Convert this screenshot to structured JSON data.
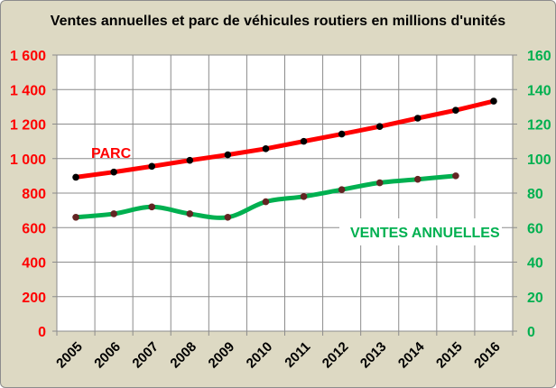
{
  "chart_data": {
    "type": "line",
    "title": "Ventes annuelles et parc de véhicules routiers en millions d'unités",
    "categories": [
      "2005",
      "2006",
      "2007",
      "2008",
      "2009",
      "2010",
      "2011",
      "2012",
      "2013",
      "2014",
      "2015",
      "2016"
    ],
    "series": [
      {
        "name": "PARC",
        "axis": "left",
        "color": "#ff0000",
        "marker_color": "#000000",
        "smooth": false,
        "values": [
          892,
          922,
          955,
          990,
          1022,
          1057,
          1100,
          1142,
          1186,
          1234,
          1280,
          1333
        ]
      },
      {
        "name": "VENTES ANNUELLES",
        "axis": "right",
        "color": "#00b050",
        "marker_color": "#632523",
        "smooth": true,
        "values": [
          66,
          68,
          72,
          68,
          66,
          75,
          78,
          82,
          86,
          88,
          90,
          null
        ]
      }
    ],
    "y_left": {
      "min": 0,
      "max": 1600,
      "step": 200,
      "ticks": [
        "0",
        "200",
        "400",
        "600",
        "800",
        "1 000",
        "1 200",
        "1 400",
        "1 600"
      ],
      "color": "#ff0000"
    },
    "y_right": {
      "min": 0,
      "max": 160,
      "step": 20,
      "ticks": [
        "0",
        "20",
        "40",
        "60",
        "80",
        "100",
        "120",
        "140",
        "160"
      ],
      "color": "#00b050"
    },
    "grid": true,
    "legend": "inline labels"
  }
}
